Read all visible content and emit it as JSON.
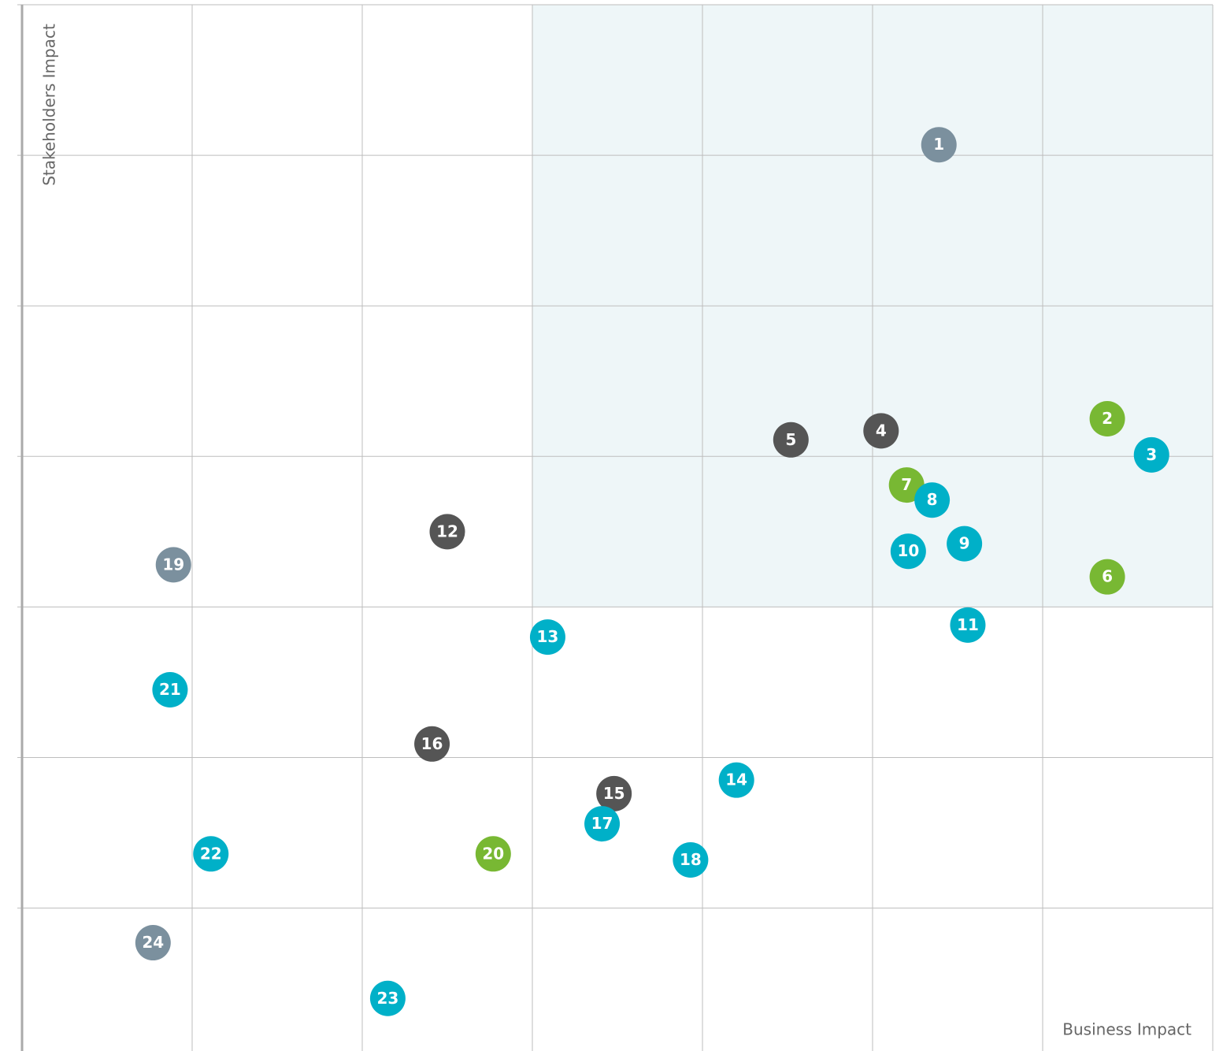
{
  "chart_data": {
    "type": "scatter",
    "x_label": "Business Impact",
    "y_label": "Stakeholders Impact",
    "xlim": [
      0,
      7
    ],
    "ylim": [
      0,
      7
    ],
    "xticks": [
      0,
      1,
      2,
      3,
      4,
      5,
      6,
      7
    ],
    "yticks": [
      0,
      1,
      2,
      3,
      4,
      5,
      6,
      7
    ],
    "grid": true,
    "highlight": {
      "x": [
        3,
        7
      ],
      "y": [
        3,
        7
      ],
      "color": "#eef6f8"
    },
    "labels": [
      "1",
      "2",
      "3",
      "4",
      "5",
      "6",
      "7",
      "8",
      "9",
      "10",
      "11",
      "12",
      "13",
      "14",
      "15",
      "16",
      "17",
      "18",
      "19",
      "20",
      "21",
      "22",
      "23",
      "24"
    ],
    "x": [
      5.39,
      6.38,
      6.64,
      5.05,
      4.52,
      6.38,
      5.2,
      5.35,
      5.54,
      5.21,
      5.56,
      2.5,
      3.09,
      4.2,
      3.48,
      2.41,
      3.41,
      3.93,
      0.89,
      2.77,
      0.87,
      1.11,
      2.15,
      0.77
    ],
    "values": [
      6.07,
      4.25,
      4.01,
      4.17,
      4.11,
      3.2,
      3.81,
      3.71,
      3.42,
      3.37,
      2.88,
      3.5,
      2.8,
      1.85,
      1.76,
      2.09,
      1.56,
      1.32,
      3.28,
      1.36,
      2.45,
      1.36,
      0.4,
      0.77
    ],
    "colors": [
      "#7b909e",
      "#78b833",
      "#00b0c8",
      "#555555",
      "#555555",
      "#78b833",
      "#78b833",
      "#00b0c8",
      "#00b0c8",
      "#00b0c8",
      "#00b0c8",
      "#555555",
      "#00b0c8",
      "#00b0c8",
      "#555555",
      "#555555",
      "#00b0c8",
      "#00b0c8",
      "#7b909e",
      "#78b833",
      "#00b0c8",
      "#00b0c8",
      "#00b0c8",
      "#7b909e"
    ]
  }
}
